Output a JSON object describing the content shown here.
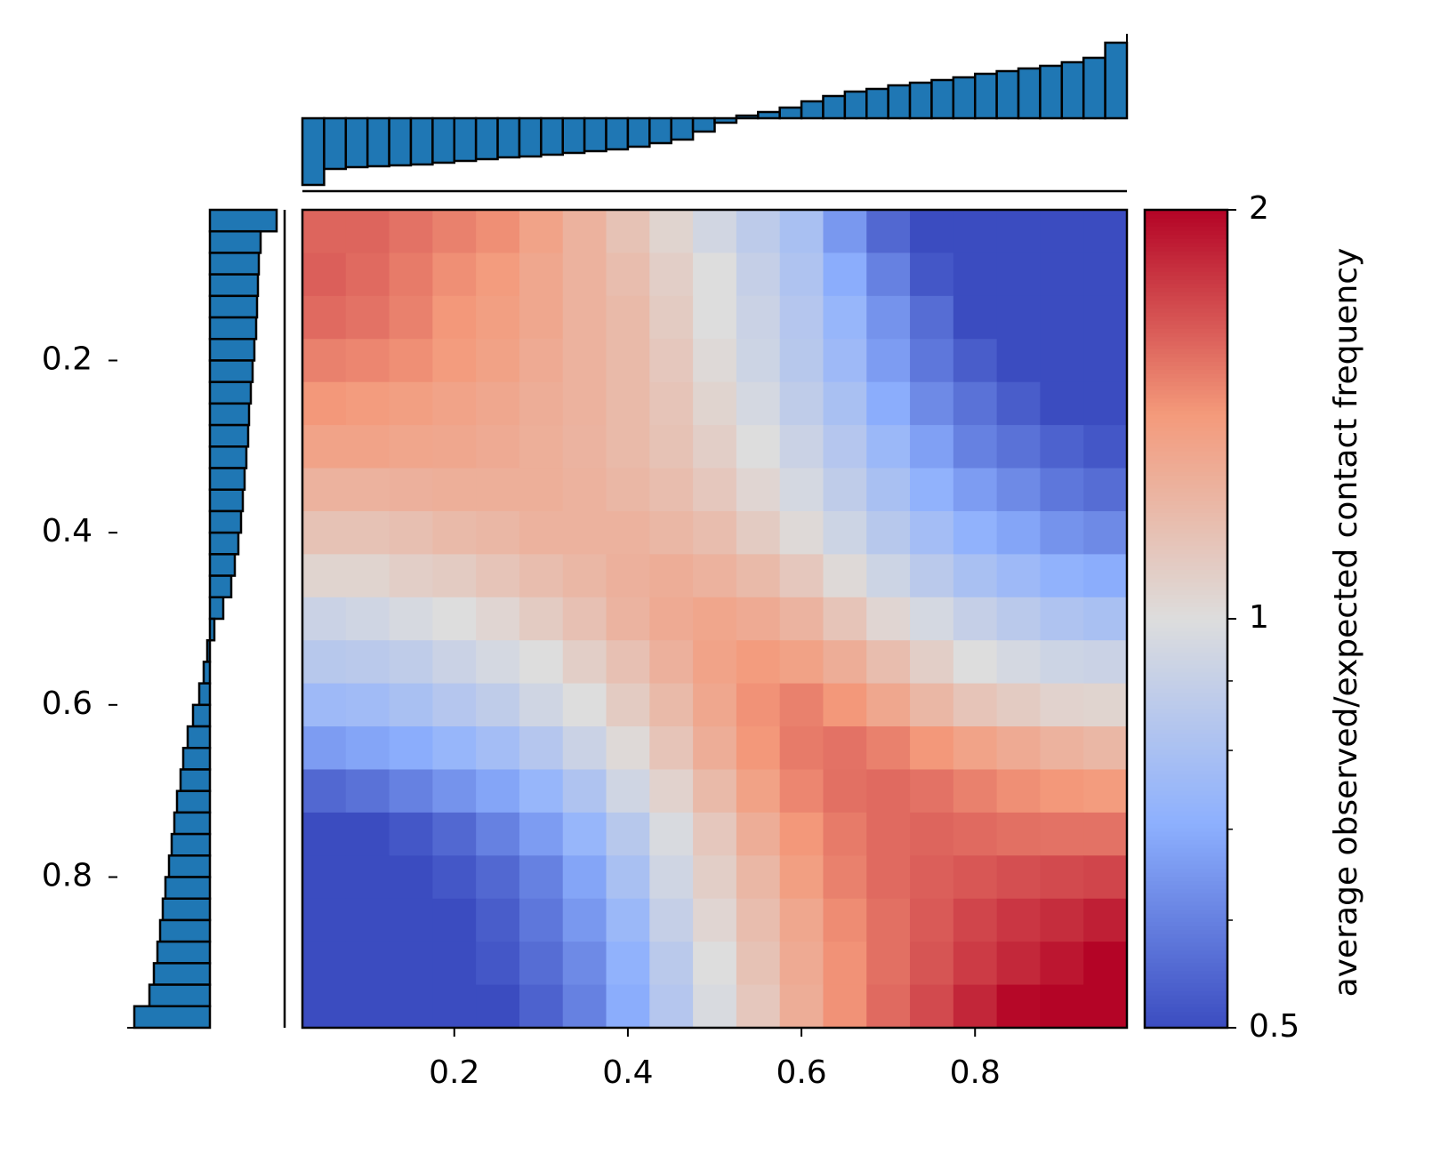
{
  "chart_data": {
    "type": "saddle",
    "colorbar_label": "average observed/expected contact frequency",
    "xlim": [
      0.025,
      0.975
    ],
    "ylim": [
      0.025,
      0.975
    ],
    "xticks": [
      0.2,
      0.4,
      0.6,
      0.8
    ],
    "yticks": [
      0.2,
      0.4,
      0.6,
      0.8
    ],
    "clim": [
      0.5,
      2
    ],
    "cticks": [
      0.5,
      1,
      2
    ],
    "cminor_ticks": [
      0.6,
      0.7,
      0.8,
      0.9
    ],
    "color_scale": "log",
    "colormap": [
      "#3b4cc0",
      "#8db0fe",
      "#dddddd",
      "#f49a7b",
      "#b40426"
    ],
    "margin_color": "#1f77b4",
    "margin_lim": [
      -0.8,
      0.9
    ],
    "margin_values": [
      -0.75,
      -0.57,
      -0.55,
      -0.54,
      -0.53,
      -0.52,
      -0.5,
      -0.48,
      -0.46,
      -0.44,
      -0.43,
      -0.41,
      -0.39,
      -0.37,
      -0.35,
      -0.32,
      -0.28,
      -0.24,
      -0.15,
      -0.05,
      0.03,
      0.07,
      0.12,
      0.19,
      0.25,
      0.3,
      0.33,
      0.37,
      0.4,
      0.43,
      0.46,
      0.5,
      0.53,
      0.56,
      0.59,
      0.63,
      0.68,
      0.85
    ],
    "z": [
      [
        1.6,
        1.6,
        1.55,
        1.5,
        1.45,
        1.35,
        1.25,
        1.15,
        1.05,
        0.95,
        0.87,
        0.8,
        0.65,
        0.55,
        0.48,
        0.47,
        0.47,
        0.47,
        0.47
      ],
      [
        1.62,
        1.58,
        1.52,
        1.45,
        1.4,
        1.32,
        1.25,
        1.18,
        1.08,
        1.0,
        0.9,
        0.82,
        0.7,
        0.6,
        0.52,
        0.48,
        0.47,
        0.47,
        0.47
      ],
      [
        1.58,
        1.55,
        1.5,
        1.42,
        1.38,
        1.32,
        1.25,
        1.2,
        1.1,
        1.0,
        0.92,
        0.84,
        0.74,
        0.64,
        0.56,
        0.5,
        0.48,
        0.47,
        0.47
      ],
      [
        1.5,
        1.48,
        1.45,
        1.4,
        1.36,
        1.3,
        1.25,
        1.2,
        1.12,
        1.02,
        0.93,
        0.85,
        0.76,
        0.66,
        0.58,
        0.53,
        0.5,
        0.48,
        0.48
      ],
      [
        1.42,
        1.4,
        1.38,
        1.35,
        1.32,
        1.28,
        1.25,
        1.2,
        1.14,
        1.05,
        0.96,
        0.88,
        0.8,
        0.7,
        0.62,
        0.57,
        0.53,
        0.5,
        0.49
      ],
      [
        1.35,
        1.35,
        1.33,
        1.32,
        1.3,
        1.27,
        1.24,
        1.2,
        1.15,
        1.08,
        1.0,
        0.92,
        0.84,
        0.75,
        0.67,
        0.6,
        0.57,
        0.54,
        0.52
      ],
      [
        1.25,
        1.25,
        1.26,
        1.27,
        1.27,
        1.27,
        1.25,
        1.22,
        1.18,
        1.12,
        1.04,
        0.96,
        0.88,
        0.8,
        0.72,
        0.66,
        0.62,
        0.58,
        0.56
      ],
      [
        1.15,
        1.15,
        1.17,
        1.2,
        1.22,
        1.25,
        1.25,
        1.25,
        1.22,
        1.18,
        1.1,
        1.02,
        0.93,
        0.85,
        0.78,
        0.72,
        0.68,
        0.64,
        0.62
      ],
      [
        1.05,
        1.05,
        1.08,
        1.1,
        1.14,
        1.18,
        1.22,
        1.26,
        1.28,
        1.25,
        1.2,
        1.12,
        1.02,
        0.93,
        0.86,
        0.8,
        0.76,
        0.72,
        0.7
      ],
      [
        0.92,
        0.94,
        0.97,
        1.0,
        1.04,
        1.1,
        1.16,
        1.24,
        1.3,
        1.33,
        1.3,
        1.24,
        1.14,
        1.04,
        0.96,
        0.9,
        0.86,
        0.82,
        0.8
      ],
      [
        0.85,
        0.86,
        0.88,
        0.92,
        0.96,
        1.0,
        1.08,
        1.16,
        1.26,
        1.35,
        1.4,
        1.36,
        1.28,
        1.18,
        1.08,
        1.0,
        0.96,
        0.93,
        0.92
      ],
      [
        0.76,
        0.77,
        0.8,
        0.84,
        0.88,
        0.94,
        1.0,
        1.1,
        1.2,
        1.32,
        1.44,
        1.5,
        1.42,
        1.32,
        1.22,
        1.14,
        1.1,
        1.06,
        1.05
      ],
      [
        0.66,
        0.68,
        0.7,
        0.74,
        0.78,
        0.84,
        0.92,
        1.02,
        1.14,
        1.28,
        1.42,
        1.52,
        1.55,
        1.5,
        1.42,
        1.35,
        1.3,
        1.25,
        1.22
      ],
      [
        0.55,
        0.57,
        0.6,
        0.64,
        0.68,
        0.74,
        0.82,
        0.94,
        1.06,
        1.2,
        1.36,
        1.48,
        1.56,
        1.58,
        1.55,
        1.5,
        1.45,
        1.42,
        1.4
      ],
      [
        0.5,
        0.5,
        0.52,
        0.55,
        0.6,
        0.66,
        0.74,
        0.85,
        0.98,
        1.12,
        1.28,
        1.42,
        1.52,
        1.58,
        1.6,
        1.58,
        1.56,
        1.55,
        1.55
      ],
      [
        0.48,
        0.48,
        0.5,
        0.52,
        0.55,
        0.6,
        0.68,
        0.8,
        0.94,
        1.08,
        1.22,
        1.38,
        1.5,
        1.58,
        1.62,
        1.65,
        1.68,
        1.7,
        1.72
      ],
      [
        0.47,
        0.47,
        0.48,
        0.5,
        0.53,
        0.58,
        0.65,
        0.75,
        0.9,
        1.04,
        1.18,
        1.32,
        1.46,
        1.56,
        1.64,
        1.72,
        1.78,
        1.82,
        1.88
      ],
      [
        0.47,
        0.47,
        0.47,
        0.48,
        0.52,
        0.56,
        0.62,
        0.72,
        0.86,
        1.0,
        1.15,
        1.3,
        1.44,
        1.56,
        1.66,
        1.76,
        1.84,
        1.92,
        2.05
      ],
      [
        0.47,
        0.47,
        0.47,
        0.47,
        0.5,
        0.54,
        0.6,
        0.7,
        0.84,
        0.98,
        1.12,
        1.28,
        1.44,
        1.58,
        1.7,
        1.85,
        1.98,
        2.1,
        2.2
      ]
    ]
  }
}
